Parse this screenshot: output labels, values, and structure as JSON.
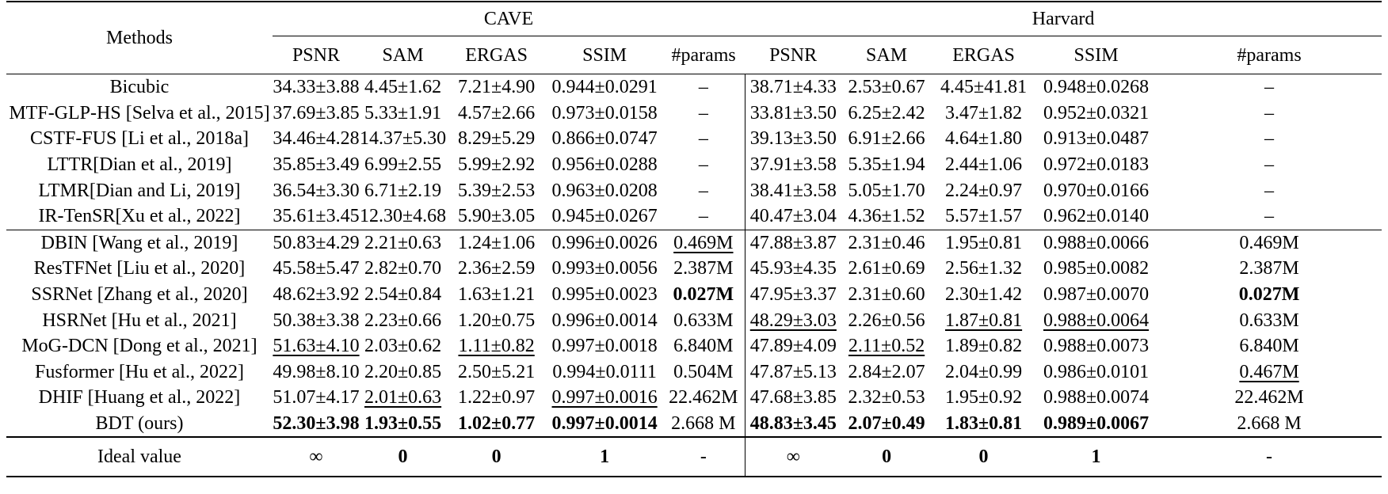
{
  "table": {
    "methods_header": "Methods",
    "groups": [
      "CAVE",
      "Harvard"
    ],
    "metrics": [
      "PSNR",
      "SAM",
      "ERGAS",
      "SSIM",
      "#params"
    ],
    "sections": [
      [
        {
          "method": "Bicubic",
          "cells": [
            {
              "v": "34.33±3.88"
            },
            {
              "v": "4.45±1.62"
            },
            {
              "v": "7.21±4.90"
            },
            {
              "v": "0.944±0.0291"
            },
            {
              "v": "–"
            },
            {
              "v": "38.71±4.33"
            },
            {
              "v": "2.53±0.67"
            },
            {
              "v": "4.45±41.81"
            },
            {
              "v": "0.948±0.0268"
            },
            {
              "v": "–"
            }
          ]
        },
        {
          "method": "MTF-GLP-HS [Selva et al., 2015]",
          "cells": [
            {
              "v": "37.69±3.85"
            },
            {
              "v": "5.33±1.91"
            },
            {
              "v": "4.57±2.66"
            },
            {
              "v": "0.973±0.0158"
            },
            {
              "v": "–"
            },
            {
              "v": "33.81±3.50"
            },
            {
              "v": "6.25±2.42"
            },
            {
              "v": "3.47±1.82"
            },
            {
              "v": "0.952±0.0321"
            },
            {
              "v": "–"
            }
          ]
        },
        {
          "method": "CSTF-FUS [Li et al., 2018a]",
          "cells": [
            {
              "v": "34.46±4.28"
            },
            {
              "v": "14.37±5.30"
            },
            {
              "v": "8.29±5.29"
            },
            {
              "v": "0.866±0.0747"
            },
            {
              "v": "–"
            },
            {
              "v": "39.13±3.50"
            },
            {
              "v": "6.91±2.66"
            },
            {
              "v": "4.64±1.80"
            },
            {
              "v": "0.913±0.0487"
            },
            {
              "v": "–"
            }
          ]
        },
        {
          "method": "LTTR[Dian et al., 2019]",
          "cells": [
            {
              "v": "35.85±3.49"
            },
            {
              "v": "6.99±2.55"
            },
            {
              "v": "5.99±2.92"
            },
            {
              "v": "0.956±0.0288"
            },
            {
              "v": "–"
            },
            {
              "v": "37.91±3.58"
            },
            {
              "v": "5.35±1.94"
            },
            {
              "v": "2.44±1.06"
            },
            {
              "v": "0.972±0.0183"
            },
            {
              "v": "–"
            }
          ]
        },
        {
          "method": "LTMR[Dian and Li, 2019]",
          "cells": [
            {
              "v": "36.54±3.30"
            },
            {
              "v": "6.71±2.19"
            },
            {
              "v": "5.39±2.53"
            },
            {
              "v": "0.963±0.0208"
            },
            {
              "v": "–"
            },
            {
              "v": "38.41±3.58"
            },
            {
              "v": "5.05±1.70"
            },
            {
              "v": "2.24±0.97"
            },
            {
              "v": "0.970±0.0166"
            },
            {
              "v": "–"
            }
          ]
        },
        {
          "method": "IR-TenSR[Xu et al., 2022]",
          "cells": [
            {
              "v": "35.61±3.45"
            },
            {
              "v": "12.30±4.68"
            },
            {
              "v": "5.90±3.05"
            },
            {
              "v": "0.945±0.0267"
            },
            {
              "v": "–"
            },
            {
              "v": "40.47±3.04"
            },
            {
              "v": "4.36±1.52"
            },
            {
              "v": "5.57±1.57"
            },
            {
              "v": "0.962±0.0140"
            },
            {
              "v": "–"
            }
          ]
        }
      ],
      [
        {
          "method": "DBIN [Wang et al., 2019]",
          "cells": [
            {
              "v": "50.83±4.29"
            },
            {
              "v": "2.21±0.63"
            },
            {
              "v": "1.24±1.06"
            },
            {
              "v": "0.996±0.0026"
            },
            {
              "v": "0.469M",
              "u": true
            },
            {
              "v": "47.88±3.87"
            },
            {
              "v": "2.31±0.46"
            },
            {
              "v": "1.95±0.81"
            },
            {
              "v": "0.988±0.0066"
            },
            {
              "v": "0.469M"
            }
          ]
        },
        {
          "method": "ResTFNet [Liu et al., 2020]",
          "cells": [
            {
              "v": "45.58±5.47"
            },
            {
              "v": "2.82±0.70"
            },
            {
              "v": "2.36±2.59"
            },
            {
              "v": "0.993±0.0056"
            },
            {
              "v": "2.387M"
            },
            {
              "v": "45.93±4.35"
            },
            {
              "v": "2.61±0.69"
            },
            {
              "v": "2.56±1.32"
            },
            {
              "v": "0.985±0.0082"
            },
            {
              "v": "2.387M"
            }
          ]
        },
        {
          "method": "SSRNet [Zhang et al., 2020]",
          "cells": [
            {
              "v": "48.62±3.92"
            },
            {
              "v": "2.54±0.84"
            },
            {
              "v": "1.63±1.21"
            },
            {
              "v": "0.995±0.0023"
            },
            {
              "v": "0.027M",
              "b": true
            },
            {
              "v": "47.95±3.37"
            },
            {
              "v": "2.31±0.60"
            },
            {
              "v": "2.30±1.42"
            },
            {
              "v": "0.987±0.0070"
            },
            {
              "v": "0.027M",
              "b": true
            }
          ]
        },
        {
          "method": "HSRNet [Hu et al., 2021]",
          "cells": [
            {
              "v": "50.38±3.38"
            },
            {
              "v": "2.23±0.66"
            },
            {
              "v": "1.20±0.75"
            },
            {
              "v": "0.996±0.0014"
            },
            {
              "v": "0.633M"
            },
            {
              "v": "48.29±3.03",
              "u": true
            },
            {
              "v": "2.26±0.56"
            },
            {
              "v": "1.87±0.81",
              "u": true
            },
            {
              "v": "0.988±0.0064",
              "u": true
            },
            {
              "v": "0.633M"
            }
          ]
        },
        {
          "method": "MoG-DCN [Dong et al., 2021]",
          "cells": [
            {
              "v": "51.63±4.10",
              "u": true
            },
            {
              "v": "2.03±0.62"
            },
            {
              "v": "1.11±0.82",
              "u": true
            },
            {
              "v": "0.997±0.0018"
            },
            {
              "v": "6.840M"
            },
            {
              "v": "47.89±4.09"
            },
            {
              "v": "2.11±0.52",
              "u": true
            },
            {
              "v": "1.89±0.82"
            },
            {
              "v": "0.988±0.0073"
            },
            {
              "v": "6.840M"
            }
          ]
        },
        {
          "method": "Fusformer [Hu et al., 2022]",
          "cells": [
            {
              "v": "49.98±8.10"
            },
            {
              "v": "2.20±0.85"
            },
            {
              "v": "2.50±5.21"
            },
            {
              "v": "0.994±0.0111"
            },
            {
              "v": "0.504M"
            },
            {
              "v": "47.87±5.13"
            },
            {
              "v": "2.84±2.07"
            },
            {
              "v": "2.04±0.99"
            },
            {
              "v": "0.986±0.0101"
            },
            {
              "v": "0.467M",
              "u": true
            }
          ]
        },
        {
          "method": "DHIF [Huang et al., 2022]",
          "cells": [
            {
              "v": "51.07±4.17"
            },
            {
              "v": "2.01±0.63",
              "u": true
            },
            {
              "v": "1.22±0.97"
            },
            {
              "v": "0.997±0.0016",
              "u": true
            },
            {
              "v": "22.462M"
            },
            {
              "v": "47.68±3.85"
            },
            {
              "v": "2.32±0.53"
            },
            {
              "v": "1.95±0.92"
            },
            {
              "v": "0.988±0.0074"
            },
            {
              "v": "22.462M"
            }
          ]
        },
        {
          "method": "BDT (ours)",
          "cells": [
            {
              "v": "52.30±3.98",
              "b": true
            },
            {
              "v": "1.93±0.55",
              "b": true
            },
            {
              "v": "1.02±0.77",
              "b": true
            },
            {
              "v": "0.997±0.0014",
              "b": true
            },
            {
              "v": "2.668 M"
            },
            {
              "v": "48.83±3.45",
              "b": true
            },
            {
              "v": "2.07±0.49",
              "b": true
            },
            {
              "v": "1.83±0.81",
              "b": true
            },
            {
              "v": "0.989±0.0067",
              "b": true
            },
            {
              "v": "2.668 M"
            }
          ]
        }
      ]
    ],
    "ideal": {
      "method": "Ideal value",
      "cells": [
        {
          "v": "∞"
        },
        {
          "v": "0",
          "b": true
        },
        {
          "v": "0",
          "b": true
        },
        {
          "v": "1",
          "b": true
        },
        {
          "v": "-"
        },
        {
          "v": "∞"
        },
        {
          "v": "0",
          "b": true
        },
        {
          "v": "0",
          "b": true
        },
        {
          "v": "1",
          "b": true
        },
        {
          "v": "-"
        }
      ]
    }
  }
}
